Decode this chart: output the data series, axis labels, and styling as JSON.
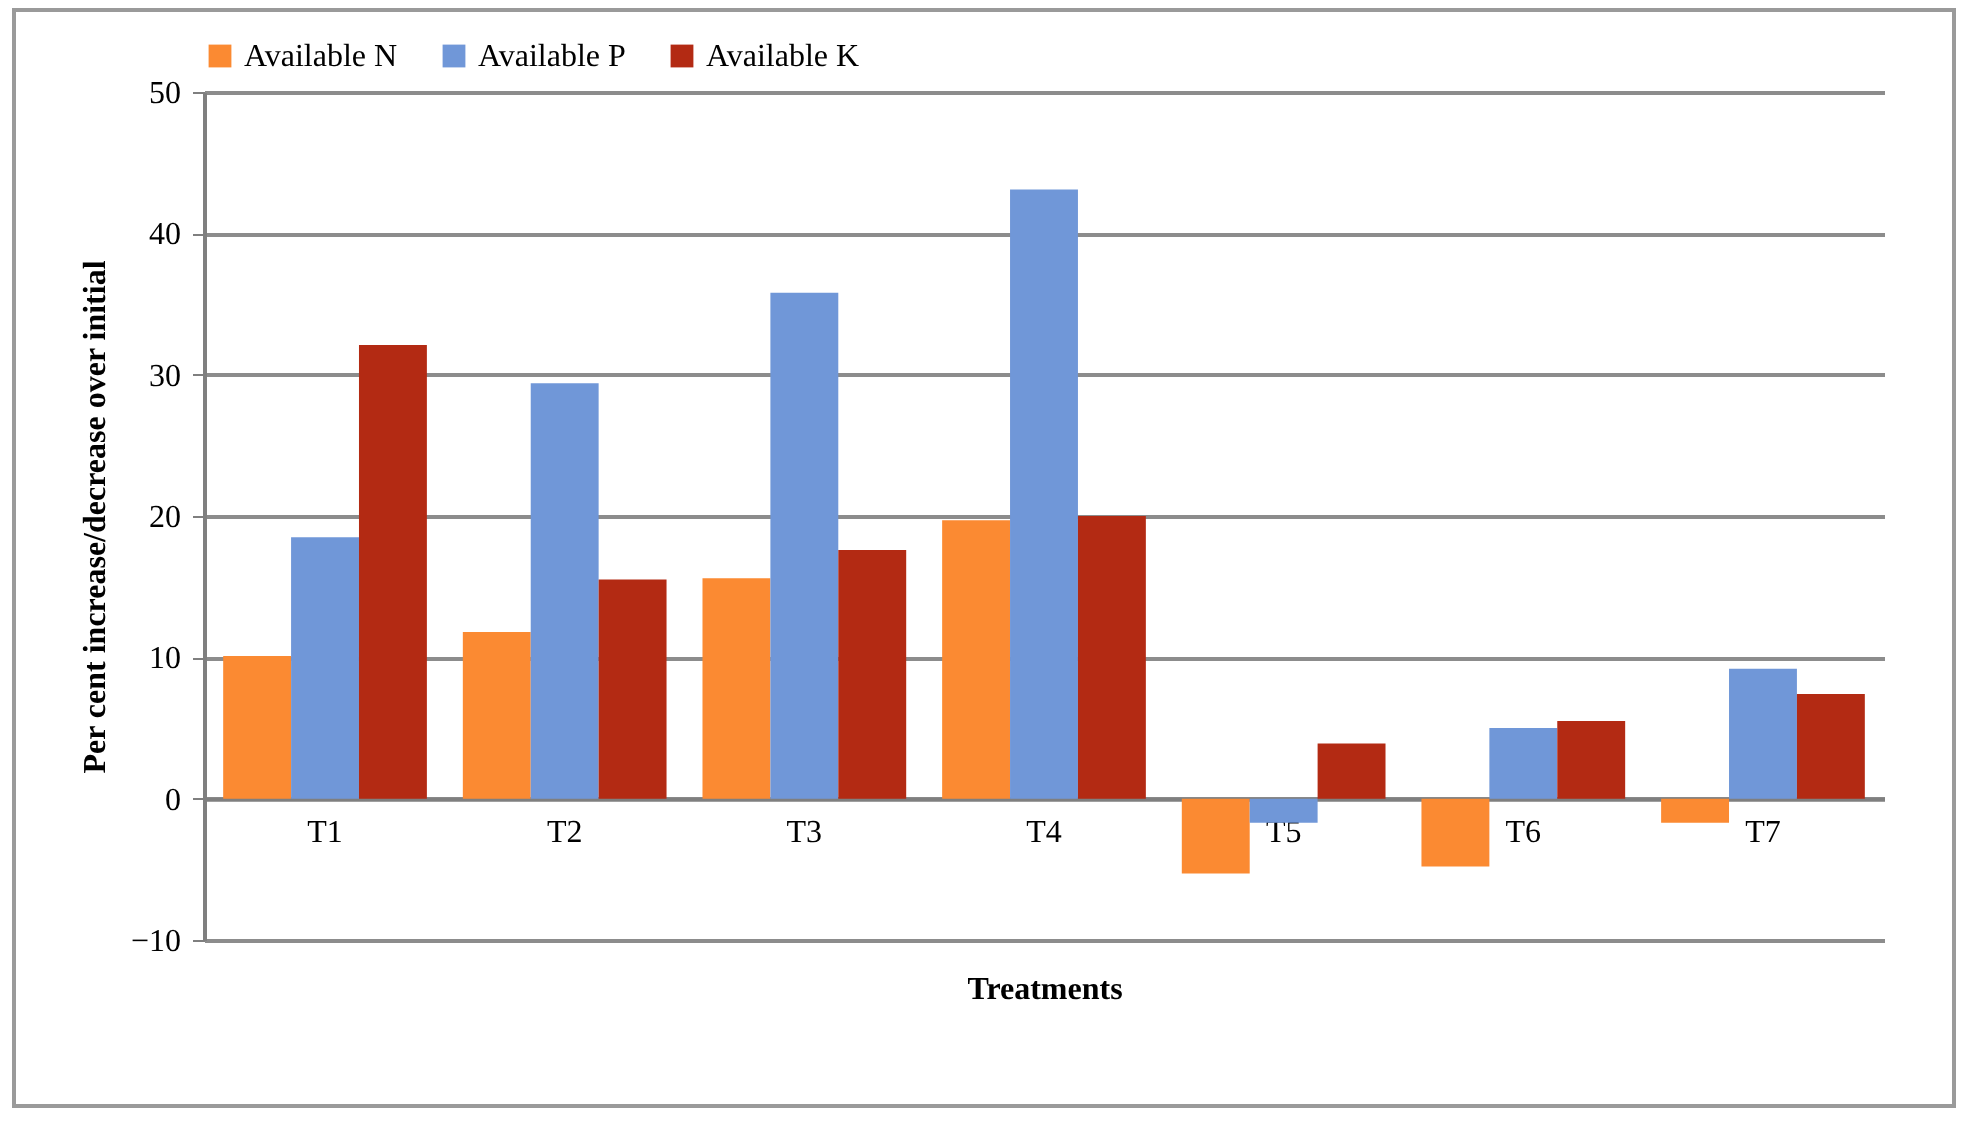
{
  "chart_data": {
    "type": "bar",
    "xlabel": "Treatments",
    "ylabel": "Per cent increase/decrease over initial",
    "categories": [
      "T1",
      "T2",
      "T3",
      "T4",
      "T5",
      "T6",
      "T7"
    ],
    "series": [
      {
        "name": "Available N",
        "color": "#fb8a32",
        "values": [
          10.1,
          11.8,
          15.6,
          19.7,
          -5.3,
          -4.8,
          -1.7
        ]
      },
      {
        "name": "Available P",
        "color": "#7097d8",
        "values": [
          18.5,
          29.4,
          35.8,
          43.1,
          -1.7,
          5.0,
          9.2
        ]
      },
      {
        "name": "Available K",
        "color": "#b32a13",
        "values": [
          32.1,
          15.5,
          17.6,
          20.0,
          3.9,
          5.5,
          7.4
        ]
      }
    ],
    "ylim": [
      -10,
      50
    ],
    "yticks": [
      -10,
      0,
      10,
      20,
      30,
      40,
      50
    ],
    "grid": "y",
    "legend": "top"
  }
}
